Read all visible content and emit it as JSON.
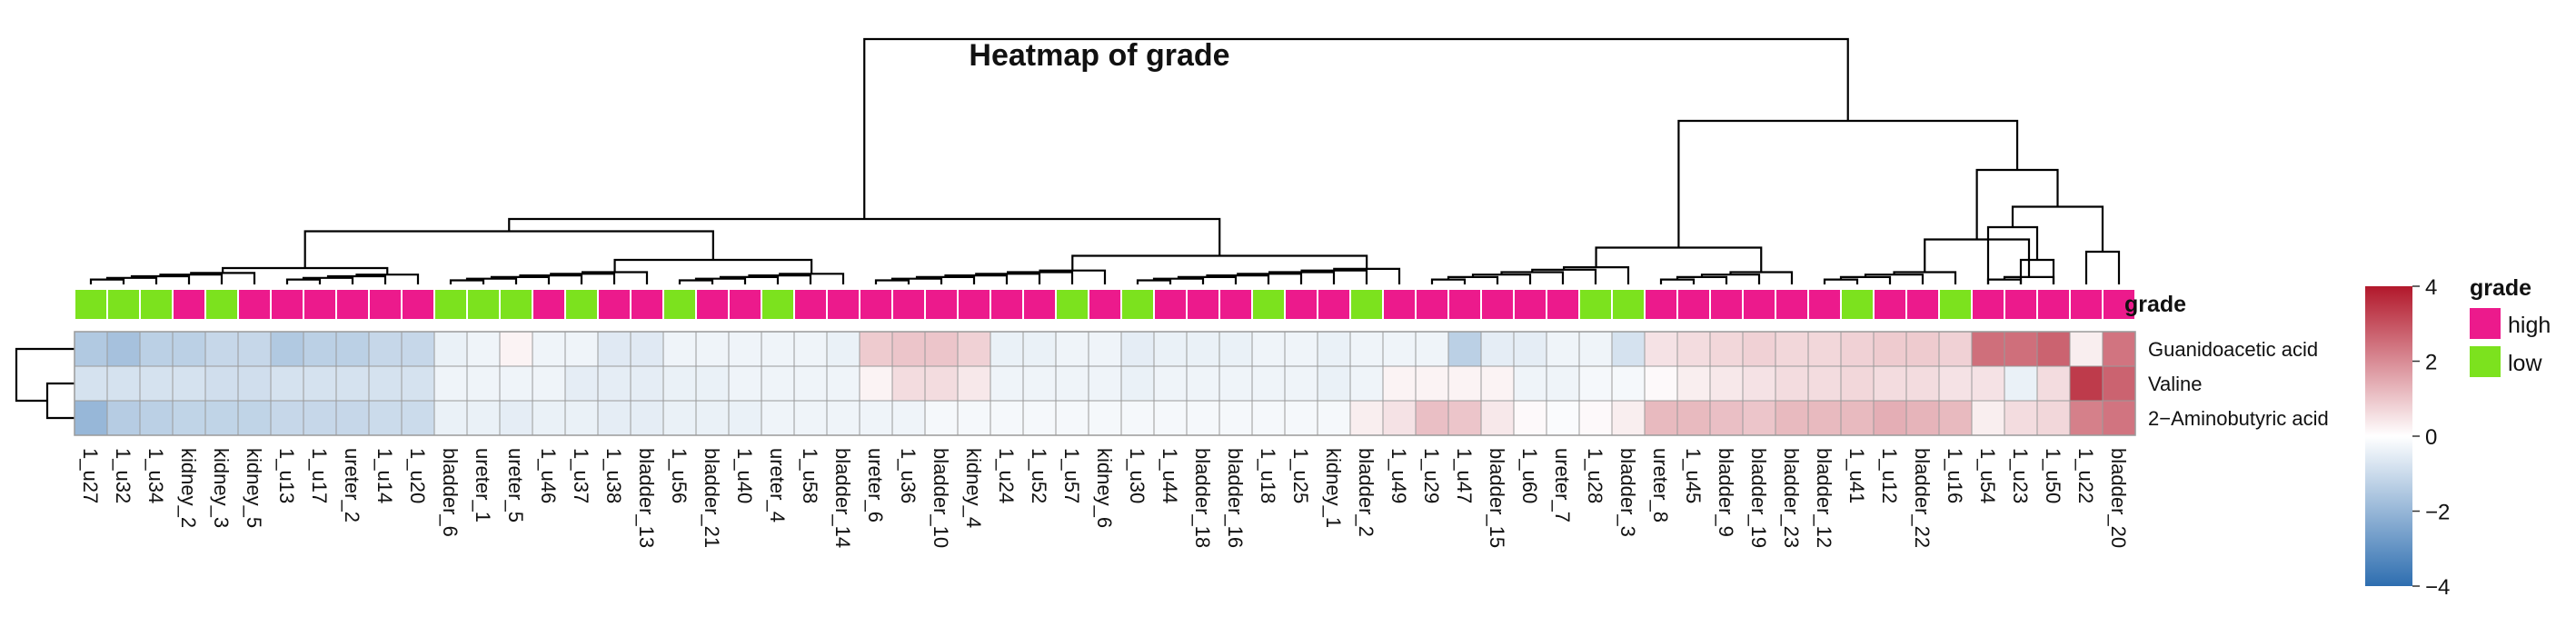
{
  "chart_data": {
    "type": "heatmap",
    "title": "Heatmap of grade",
    "columns": [
      "1_u27",
      "1_u32",
      "1_u34",
      "kidney_2",
      "kidney_3",
      "kidney_5",
      "1_u13",
      "1_u17",
      "ureter_2",
      "1_u14",
      "1_u20",
      "bladder_6",
      "ureter_1",
      "ureter_5",
      "1_u46",
      "1_u37",
      "1_u38",
      "bladder_13",
      "1_u56",
      "bladder_21",
      "1_u40",
      "ureter_4",
      "1_u58",
      "bladder_14",
      "ureter_6",
      "1_u36",
      "bladder_10",
      "kidney_4",
      "1_u24",
      "1_u52",
      "1_u57",
      "kidney_6",
      "1_u30",
      "1_u44",
      "bladder_18",
      "bladder_16",
      "1_u18",
      "1_u25",
      "kidney_1",
      "bladder_2",
      "1_u49",
      "1_u29",
      "1_u47",
      "bladder_15",
      "1_u60",
      "ureter_7",
      "1_u28",
      "bladder_3",
      "ureter_8",
      "1_u45",
      "bladder_9",
      "bladder_19",
      "bladder_23",
      "bladder_12",
      "1_u41",
      "1_u12",
      "bladder_22",
      "1_u16",
      "1_u54",
      "1_u23",
      "1_u50",
      "1_u22",
      "bladder_20"
    ],
    "rows": [
      "Guanidoacetic acid",
      "Valine",
      "2−Aminobutyric acid"
    ],
    "grade": [
      "low",
      "low",
      "low",
      "high",
      "low",
      "high",
      "high",
      "high",
      "high",
      "high",
      "high",
      "low",
      "low",
      "low",
      "high",
      "low",
      "high",
      "high",
      "low",
      "high",
      "high",
      "low",
      "high",
      "high",
      "high",
      "high",
      "high",
      "high",
      "high",
      "high",
      "low",
      "high",
      "low",
      "high",
      "high",
      "high",
      "low",
      "high",
      "high",
      "low",
      "high",
      "high",
      "high",
      "high",
      "high",
      "high",
      "low",
      "low",
      "high",
      "high",
      "high",
      "high",
      "high",
      "high",
      "low",
      "high",
      "high",
      "low",
      "high",
      "high",
      "high",
      "high",
      "high"
    ],
    "values": [
      [
        -1.5,
        -1.7,
        -1.3,
        -1.3,
        -1.1,
        -1.1,
        -1.5,
        -1.3,
        -1.3,
        -1.1,
        -1.1,
        -0.4,
        -0.3,
        0.2,
        -0.3,
        -0.3,
        -0.6,
        -0.6,
        -0.3,
        -0.3,
        -0.3,
        -0.3,
        -0.3,
        -0.4,
        0.9,
        1.0,
        1.0,
        0.8,
        -0.4,
        -0.4,
        -0.3,
        -0.3,
        -0.5,
        -0.4,
        -0.4,
        -0.4,
        -0.3,
        -0.3,
        -0.4,
        -0.3,
        -0.3,
        -0.3,
        -1.3,
        -0.5,
        -0.5,
        -0.3,
        -0.3,
        -0.8,
        0.5,
        0.6,
        0.7,
        0.8,
        0.7,
        0.7,
        0.8,
        0.9,
        0.9,
        0.8,
        2.5,
        2.5,
        2.7,
        0.3,
        2.4
      ],
      [
        -0.8,
        -0.8,
        -0.8,
        -0.8,
        -0.9,
        -0.9,
        -0.8,
        -0.8,
        -0.8,
        -0.8,
        -0.8,
        -0.3,
        -0.3,
        -0.3,
        -0.3,
        -0.5,
        -0.5,
        -0.5,
        -0.4,
        -0.4,
        -0.3,
        -0.3,
        -0.3,
        -0.3,
        0.2,
        0.6,
        0.6,
        0.4,
        -0.3,
        -0.3,
        -0.3,
        -0.3,
        -0.4,
        -0.3,
        -0.3,
        -0.3,
        -0.3,
        -0.3,
        -0.4,
        -0.3,
        0.2,
        0.2,
        0.2,
        0.2,
        -0.3,
        -0.3,
        -0.2,
        -0.2,
        0.1,
        0.3,
        0.4,
        0.5,
        0.6,
        0.6,
        0.7,
        0.6,
        0.6,
        0.5,
        0.5,
        -0.4,
        0.6,
        3.4,
        2.7
      ],
      [
        -2.0,
        -1.4,
        -1.3,
        -1.2,
        -1.2,
        -1.2,
        -1.1,
        -1.1,
        -1.1,
        -1.0,
        -1.0,
        -0.4,
        -0.4,
        -0.5,
        -0.4,
        -0.4,
        -0.5,
        -0.5,
        -0.4,
        -0.4,
        -0.4,
        -0.3,
        -0.3,
        -0.3,
        -0.3,
        -0.3,
        -0.2,
        -0.2,
        -0.2,
        -0.2,
        -0.2,
        -0.2,
        -0.2,
        -0.2,
        -0.2,
        -0.2,
        -0.2,
        -0.2,
        -0.2,
        0.3,
        0.5,
        1.1,
        1.0,
        0.4,
        0.1,
        -0.1,
        0.1,
        0.3,
        1.2,
        1.2,
        1.1,
        1.0,
        1.2,
        1.2,
        1.2,
        1.4,
        1.3,
        1.2,
        0.3,
        0.6,
        0.7,
        2.2,
        2.4
      ]
    ],
    "color_scale": {
      "colors": [
        "#2e6eb0",
        "#ffffff",
        "#b2182b"
      ],
      "min": -4,
      "max": 4,
      "ticks": [
        "4",
        "2",
        "0",
        "−2",
        "−4"
      ]
    },
    "legend": {
      "title": "grade",
      "items": [
        {
          "label": "high",
          "color": "#ec1a8c"
        },
        {
          "label": "low",
          "color": "#7ce21e"
        }
      ]
    },
    "annotation_label": "grade"
  }
}
